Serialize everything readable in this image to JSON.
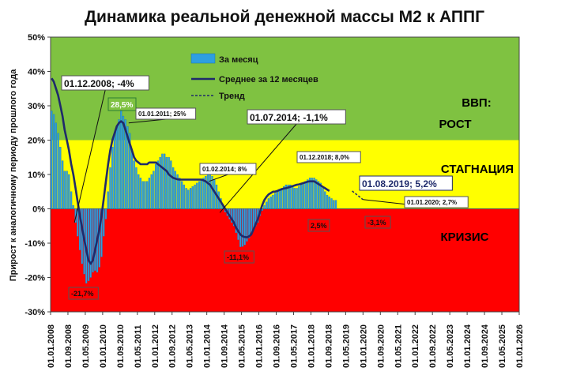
{
  "chart_data": {
    "type": "bar",
    "title": "Динамика реальной денежной массы М2 к АППГ",
    "ylabel": "Прирост к аналогичному периоду прошлого года",
    "xlabel": "",
    "ylim": [
      -30,
      50
    ],
    "y_ticks": [
      "-30%",
      "-20%",
      "-10%",
      "0%",
      "10%",
      "20%",
      "30%",
      "40%",
      "50%"
    ],
    "x_ticks": [
      "01.01.2008",
      "01.09.2008",
      "01.05.2009",
      "01.01.2010",
      "01.09.2010",
      "01.05.2011",
      "01.01.2012",
      "01.09.2012",
      "01.05.2013",
      "01.01.2014",
      "01.09.2014",
      "01.05.2015",
      "01.01.2016",
      "01.09.2016",
      "01.05.2017",
      "01.01.2018",
      "01.09.2018",
      "01.05.2019",
      "01.01.2020",
      "01.09.2020",
      "01.05.2021",
      "01.01.2022",
      "01.09.2022",
      "01.05.2023",
      "01.01.2024",
      "01.09.2024",
      "01.05.2025",
      "01.01.2026"
    ],
    "x_range": [
      "01.01.2008",
      "01.01.2026"
    ],
    "zones": [
      {
        "name": "КРИЗИС",
        "from": -30,
        "to": 0,
        "color": "#ff0000"
      },
      {
        "name": "СТАГНАЦИЯ",
        "from": 0,
        "to": 20,
        "color": "#ffff00"
      },
      {
        "name": "ВВП:",
        "from": 20,
        "to": 50,
        "color": "#7fc241"
      }
    ],
    "zone_labels": {
      "gdp": "ВВП:",
      "growth": "РОСТ",
      "stagnation": "СТАГНАЦИЯ",
      "crisis": "КРИЗИС"
    },
    "legend": {
      "position": "top-left",
      "items": [
        {
          "label": "За месяц",
          "kind": "bar",
          "color": "#2e9fe0"
        },
        {
          "label": "Среднее за 12 месяцев",
          "kind": "line",
          "color": "#1f2a6b"
        },
        {
          "label": "Тренд",
          "kind": "dashed",
          "color": "#1f2a6b"
        }
      ]
    },
    "series": [
      {
        "name": "За месяц",
        "start_month": "2008-01",
        "values": [
          28.5,
          27.5,
          25,
          22,
          18,
          14,
          11,
          11,
          10,
          5,
          1,
          -4,
          -8,
          -12,
          -16,
          -19,
          -21.7,
          -21,
          -20,
          -18.5,
          -18,
          -18.5,
          -17,
          -14,
          -8,
          -3,
          5,
          12,
          18,
          22,
          24,
          26,
          28.5,
          27,
          26,
          24,
          22,
          17,
          14,
          12,
          10,
          9,
          8,
          8,
          8,
          9,
          10,
          11,
          13,
          14,
          15,
          16,
          16,
          15,
          15,
          14,
          12,
          11,
          10,
          9,
          8,
          7,
          6,
          5.5,
          6,
          6.5,
          7,
          7.5,
          8,
          8.5,
          9,
          9.5,
          10,
          10.5,
          9.5,
          8.5,
          7,
          5,
          3,
          1,
          -1,
          -2,
          -3,
          -4,
          -5,
          -7,
          -9,
          -11.1,
          -11,
          -10.5,
          -9.5,
          -8.5,
          -7,
          -6,
          -5,
          -4,
          -2,
          -0.5,
          1,
          2,
          3,
          3.5,
          4,
          4.5,
          5,
          5.5,
          6,
          6.5,
          7,
          7,
          7,
          6.5,
          6,
          6,
          6.5,
          7,
          7.5,
          8,
          8.5,
          9,
          9,
          9,
          8.5,
          8,
          7.5,
          6,
          5,
          4,
          3.5,
          3,
          2.5,
          2.5
        ]
      },
      {
        "name": "Среднее за 12 месяцев",
        "start_month": "2008-01",
        "values": [
          38,
          37,
          35,
          33,
          30,
          27,
          23,
          20,
          17,
          13,
          10,
          6,
          2,
          -2,
          -5.5,
          -9,
          -12,
          -15,
          -16,
          -15,
          -12,
          -9,
          -6,
          -2,
          3,
          8,
          13,
          17,
          20,
          22,
          24,
          25,
          25.5,
          25,
          23,
          21,
          19,
          17,
          15,
          14,
          13.5,
          13,
          13,
          13,
          13,
          13.5,
          13.5,
          13.5,
          13.5,
          13,
          12.5,
          12,
          11.5,
          11,
          10,
          9.5,
          9,
          8.8,
          8.6,
          8.5,
          8.5,
          8.5,
          8.5,
          8.5,
          8.5,
          8.5,
          8.5,
          8.5,
          8.5,
          8.5,
          8.3,
          8,
          7.5,
          7,
          6,
          5,
          4,
          3,
          2,
          1,
          0,
          -1,
          -2,
          -3,
          -4,
          -5.5,
          -6.5,
          -7.5,
          -8,
          -8.2,
          -8.3,
          -8,
          -7.5,
          -6,
          -4.5,
          -3,
          -1,
          1,
          2.5,
          3.5,
          4.2,
          4.6,
          5,
          5,
          5.2,
          5.5,
          5.7,
          5.9,
          6,
          6.2,
          6.4,
          6.6,
          6.8,
          7,
          7.1,
          7.3,
          7.5,
          7.7,
          7.9,
          8,
          8,
          8,
          7.6,
          7.2,
          6.8,
          6.4,
          6.0,
          5.6,
          5.2
        ]
      },
      {
        "name": "Тренд",
        "points": [
          [
            "01.08.2019",
            5.2
          ],
          [
            "01.01.2020",
            2.7
          ]
        ]
      }
    ],
    "annotations": [
      {
        "text": "01.12.2008; -4%",
        "x": "01.12.2008",
        "y": -4,
        "style": "big"
      },
      {
        "text": "28,5%",
        "x": "01.01.2010",
        "y": 28.5,
        "style": "green-box"
      },
      {
        "text": "01.01.2011; 25%",
        "x": "01.01.2011",
        "y": 25,
        "style": "small"
      },
      {
        "text": "01.07.2014; -1,1%",
        "x": "01.07.2014",
        "y": -1.1,
        "style": "big"
      },
      {
        "text": "01.02.2014; 8%",
        "x": "01.02.2014",
        "y": 8,
        "style": "small"
      },
      {
        "text": "01.12.2018; 8,0%",
        "x": "01.12.2018",
        "y": 8,
        "style": "small"
      },
      {
        "text": "01.08.2019; 5,2%",
        "x": "01.08.2019",
        "y": 5.2,
        "style": "blue-big"
      },
      {
        "text": "01.01.2020; 2,7%",
        "x": "01.01.2020",
        "y": 2.7,
        "style": "small"
      },
      {
        "text": "-21,7%",
        "x": "01.05.2009",
        "y": -21.7,
        "style": "red-box"
      },
      {
        "text": "-11,1%",
        "x": "01.05.2015",
        "y": -11.1,
        "style": "red-box"
      },
      {
        "text": "2,5%",
        "x": "01.07.2019",
        "y": 2.5,
        "style": "red-box"
      },
      {
        "text": "-3,1%",
        "x": "01.01.2020",
        "y": -3.1,
        "style": "red-box"
      }
    ]
  }
}
